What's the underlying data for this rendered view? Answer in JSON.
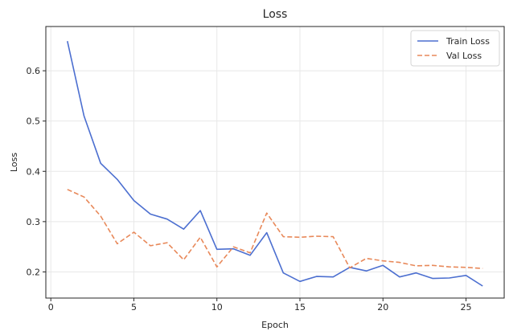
{
  "chart_data": {
    "type": "line",
    "title": "Loss",
    "xlabel": "Epoch",
    "ylabel": "Loss",
    "x": [
      1,
      2,
      3,
      4,
      5,
      6,
      7,
      8,
      9,
      10,
      11,
      12,
      13,
      14,
      15,
      16,
      17,
      18,
      19,
      20,
      21,
      22,
      23,
      24,
      25,
      26
    ],
    "series": [
      {
        "name": "Train Loss",
        "color": "#4c6fd0",
        "style": "solid",
        "values": [
          0.659,
          0.51,
          0.416,
          0.384,
          0.342,
          0.315,
          0.305,
          0.285,
          0.322,
          0.245,
          0.246,
          0.233,
          0.278,
          0.198,
          0.181,
          0.191,
          0.19,
          0.209,
          0.202,
          0.213,
          0.19,
          0.198,
          0.187,
          0.188,
          0.193,
          0.172
        ]
      },
      {
        "name": "Val Loss",
        "color": "#e8895a",
        "style": "dashed",
        "values": [
          0.364,
          0.349,
          0.311,
          0.256,
          0.279,
          0.252,
          0.258,
          0.224,
          0.269,
          0.21,
          0.25,
          0.238,
          0.317,
          0.27,
          0.269,
          0.271,
          0.27,
          0.208,
          0.227,
          0.222,
          0.219,
          0.212,
          0.213,
          0.21,
          0.209,
          0.207
        ]
      }
    ],
    "xlim": [
      -0.3,
      27.3
    ],
    "ylim": [
      0.148,
      0.688
    ],
    "xticks": [
      0,
      5,
      10,
      15,
      20,
      25
    ],
    "yticks": [
      0.2,
      0.3,
      0.4,
      0.5,
      0.6
    ],
    "ytick_labels": [
      "0.2",
      "0.3",
      "0.4",
      "0.5",
      "0.6"
    ],
    "grid": true,
    "legend_position": "top-right"
  }
}
